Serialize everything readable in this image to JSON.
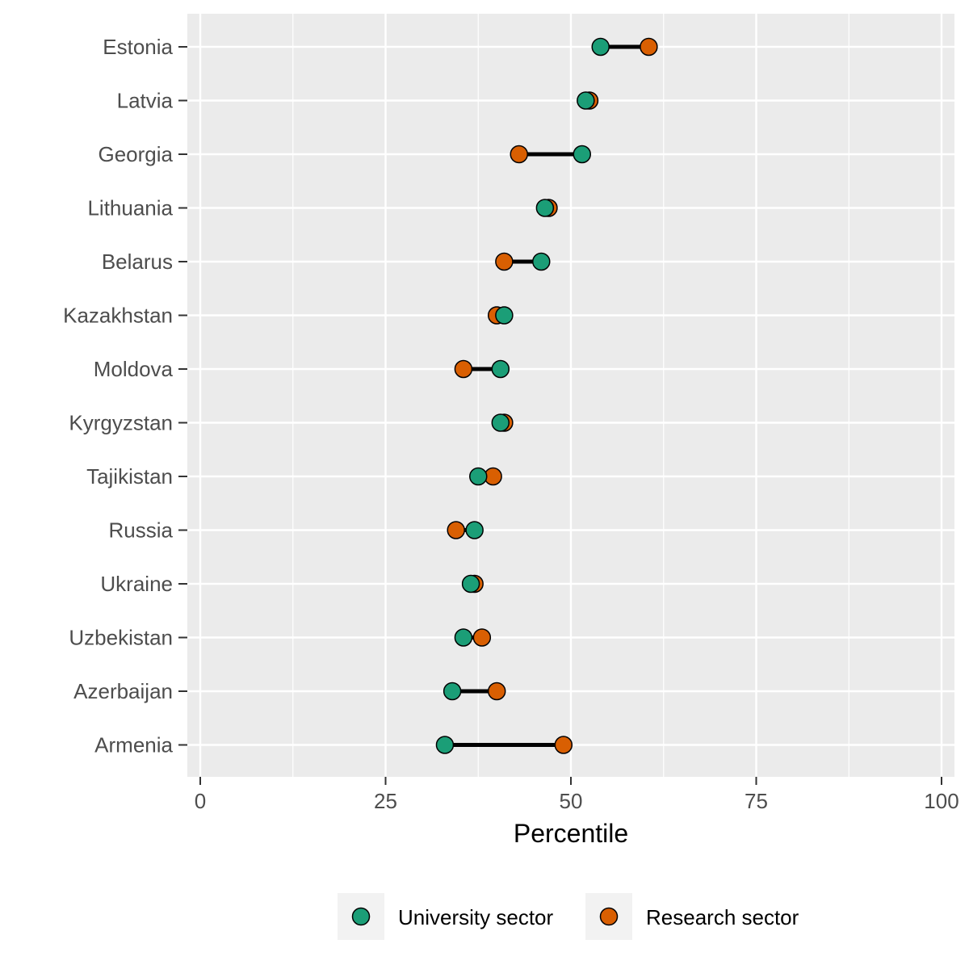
{
  "chart_data": {
    "type": "scatter",
    "subtype": "dumbbell",
    "xlabel": "Percentile",
    "ylabel": "",
    "xlim": [
      0,
      100
    ],
    "x_ticks": [
      0,
      25,
      50,
      75,
      100
    ],
    "grid": true,
    "legend_position": "bottom",
    "categories": [
      "Estonia",
      "Latvia",
      "Georgia",
      "Lithuania",
      "Belarus",
      "Kazakhstan",
      "Moldova",
      "Kyrgyzstan",
      "Tajikistan",
      "Russia",
      "Ukraine",
      "Uzbekistan",
      "Azerbaijan",
      "Armenia"
    ],
    "series": [
      {
        "name": "University sector",
        "color": "#1b9e77",
        "values": [
          54,
          52,
          51.5,
          46.5,
          46,
          41,
          40.5,
          40.5,
          37.5,
          37,
          36.5,
          35.5,
          34,
          33
        ]
      },
      {
        "name": "Research sector",
        "color": "#d95f02",
        "values": [
          60.5,
          52.5,
          43,
          47,
          41,
          40,
          35.5,
          41,
          39.5,
          34.5,
          37,
          38,
          40,
          49
        ]
      }
    ]
  }
}
